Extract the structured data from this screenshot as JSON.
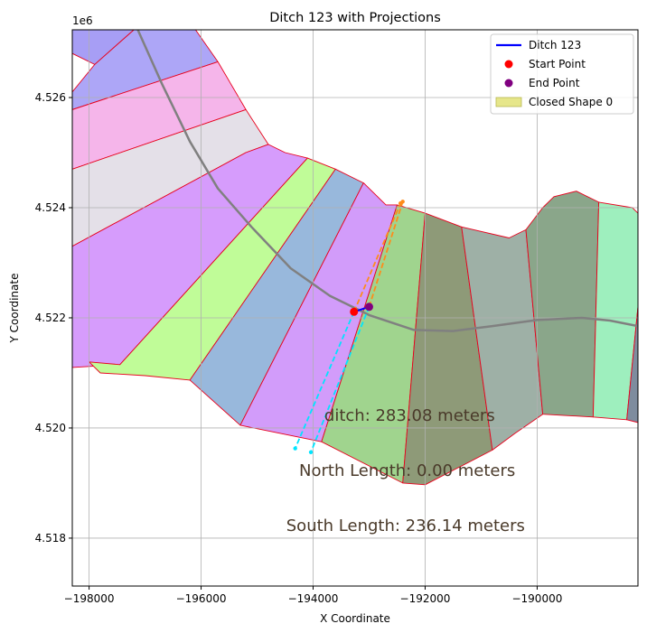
{
  "chart_data": {
    "type": "map-plot",
    "title": "Ditch 123 with Projections",
    "xlabel": "X Coordinate",
    "ylabel": "Y Coordinate",
    "y_offset_label": "1e6",
    "xlim": [
      -198300,
      -188200
    ],
    "ylim": [
      4517130,
      4527230
    ],
    "x_ticks": [
      -198000,
      -196000,
      -194000,
      -192000,
      -190000
    ],
    "x_tick_labels": [
      "−198000",
      "−196000",
      "−194000",
      "−192000",
      "−190000"
    ],
    "y_ticks": [
      4518000,
      4520000,
      4522000,
      4524000,
      4526000
    ],
    "y_tick_labels": [
      "4.518",
      "4.520",
      "4.522",
      "4.524",
      "4.526"
    ],
    "grid": true,
    "legend_position": "top-right",
    "legend": [
      {
        "label": "Ditch 123",
        "kind": "line",
        "color": "#0000ff"
      },
      {
        "label": "Start Point",
        "kind": "point",
        "color": "#ff0000"
      },
      {
        "label": "End Point",
        "kind": "point",
        "color": "#800080"
      },
      {
        "label": "Closed Shape 0",
        "kind": "patch",
        "color": "#e6e68a"
      }
    ],
    "annotations": [
      {
        "text": "ditch: 283.08 meters",
        "x": -193800,
        "y": 4520130
      },
      {
        "text": "North Length: 0.00 meters",
        "x": -194250,
        "y": 4519130
      },
      {
        "text": "South Length: 236.14 meters",
        "x": -194480,
        "y": 4518130
      }
    ],
    "ditch_line": [
      [
        -193270,
        4522110
      ],
      [
        -193000,
        4522200
      ]
    ],
    "start_point": [
      -193270,
      4522110
    ],
    "end_point": [
      -193000,
      4522200
    ],
    "north_projections": [
      [
        [
          -193270,
          4522110
        ],
        [
          -192440,
          4524080
        ]
      ],
      [
        [
          -193000,
          4522200
        ],
        [
          -192400,
          4524110
        ]
      ]
    ],
    "south_projections": [
      [
        [
          -193270,
          4522110
        ],
        [
          -194320,
          4519630
        ]
      ],
      [
        [
          -193000,
          4522200
        ],
        [
          -194040,
          4519560
        ]
      ]
    ],
    "road_curve": [
      [
        -197130,
        4527230
      ],
      [
        -196700,
        4526250
      ],
      [
        -196200,
        4525200
      ],
      [
        -195700,
        4524350
      ],
      [
        -195100,
        4523650
      ],
      [
        -194400,
        4522900
      ],
      [
        -193700,
        4522400
      ],
      [
        -193000,
        4522050
      ],
      [
        -192200,
        4521780
      ],
      [
        -191500,
        4521760
      ],
      [
        -190800,
        4521850
      ],
      [
        -190000,
        4521960
      ],
      [
        -189200,
        4522000
      ],
      [
        -188700,
        4521950
      ],
      [
        -188200,
        4521850
      ]
    ],
    "shapes": [
      {
        "color": "#a79ef5",
        "points": [
          [
            -198300,
            4527230
          ],
          [
            -198300,
            4526800
          ],
          [
            -197900,
            4526600
          ],
          [
            -197200,
            4527230
          ]
        ]
      },
      {
        "color": "#ada6f7",
        "points": [
          [
            -197200,
            4527230
          ],
          [
            -197900,
            4526600
          ],
          [
            -198300,
            4526100
          ],
          [
            -198300,
            4525780
          ],
          [
            -195700,
            4526650
          ],
          [
            -196100,
            4527230
          ]
        ]
      },
      {
        "color": "#f5b5ea",
        "points": [
          [
            -198300,
            4525780
          ],
          [
            -195700,
            4526650
          ],
          [
            -195200,
            4525780
          ],
          [
            -198300,
            4524700
          ]
        ]
      },
      {
        "color": "#e4e0e8",
        "points": [
          [
            -198300,
            4524700
          ],
          [
            -195200,
            4525780
          ],
          [
            -194800,
            4525150
          ],
          [
            -195200,
            4525000
          ],
          [
            -198300,
            4523300
          ]
        ]
      },
      {
        "color": "#d69cfc",
        "points": [
          [
            -198300,
            4523300
          ],
          [
            -195200,
            4525000
          ],
          [
            -194800,
            4525150
          ],
          [
            -194500,
            4525000
          ],
          [
            -194100,
            4524900
          ],
          [
            -197450,
            4521150
          ],
          [
            -198300,
            4521100
          ]
        ]
      },
      {
        "color": "#c0fc98",
        "points": [
          [
            -197450,
            4521150
          ],
          [
            -194100,
            4524900
          ],
          [
            -193600,
            4524700
          ],
          [
            -196200,
            4520870
          ],
          [
            -197000,
            4520950
          ],
          [
            -197800,
            4521000
          ],
          [
            -198000,
            4521200
          ]
        ]
      },
      {
        "color": "#98b8dc",
        "points": [
          [
            -196200,
            4520870
          ],
          [
            -193600,
            4524700
          ],
          [
            -193100,
            4524450
          ],
          [
            -195300,
            4520050
          ]
        ]
      },
      {
        "color": "#d29cfa",
        "points": [
          [
            -195300,
            4520050
          ],
          [
            -193100,
            4524450
          ],
          [
            -192700,
            4524050
          ],
          [
            -192500,
            4524050
          ],
          [
            -193850,
            4519750
          ]
        ]
      },
      {
        "color": "#a0d48e",
        "points": [
          [
            -193850,
            4519750
          ],
          [
            -192500,
            4524050
          ],
          [
            -192000,
            4523900
          ],
          [
            -192400,
            4519000
          ]
        ]
      },
      {
        "color": "#8e9a78",
        "points": [
          [
            -192400,
            4519000
          ],
          [
            -192000,
            4523900
          ],
          [
            -191350,
            4523650
          ],
          [
            -190800,
            4519600
          ],
          [
            -192000,
            4518970
          ]
        ]
      },
      {
        "color": "#9eb0a6",
        "points": [
          [
            -190800,
            4519600
          ],
          [
            -191350,
            4523650
          ],
          [
            -190500,
            4523450
          ],
          [
            -190200,
            4523600
          ],
          [
            -189900,
            4520250
          ],
          [
            -190400,
            4519900
          ]
        ]
      },
      {
        "color": "#8aa68a",
        "points": [
          [
            -189900,
            4520250
          ],
          [
            -190200,
            4523600
          ],
          [
            -189900,
            4524000
          ],
          [
            -189700,
            4524200
          ],
          [
            -189300,
            4524300
          ],
          [
            -188900,
            4524100
          ],
          [
            -189000,
            4520200
          ]
        ]
      },
      {
        "color": "#9eefbe",
        "points": [
          [
            -189000,
            4520200
          ],
          [
            -188900,
            4524100
          ],
          [
            -188300,
            4524000
          ],
          [
            -188200,
            4523900
          ],
          [
            -188200,
            4522200
          ],
          [
            -188400,
            4520150
          ]
        ]
      },
      {
        "color": "#7e8c9e",
        "points": [
          [
            -188400,
            4520150
          ],
          [
            -188200,
            4522200
          ],
          [
            -188200,
            4520100
          ]
        ]
      }
    ]
  }
}
